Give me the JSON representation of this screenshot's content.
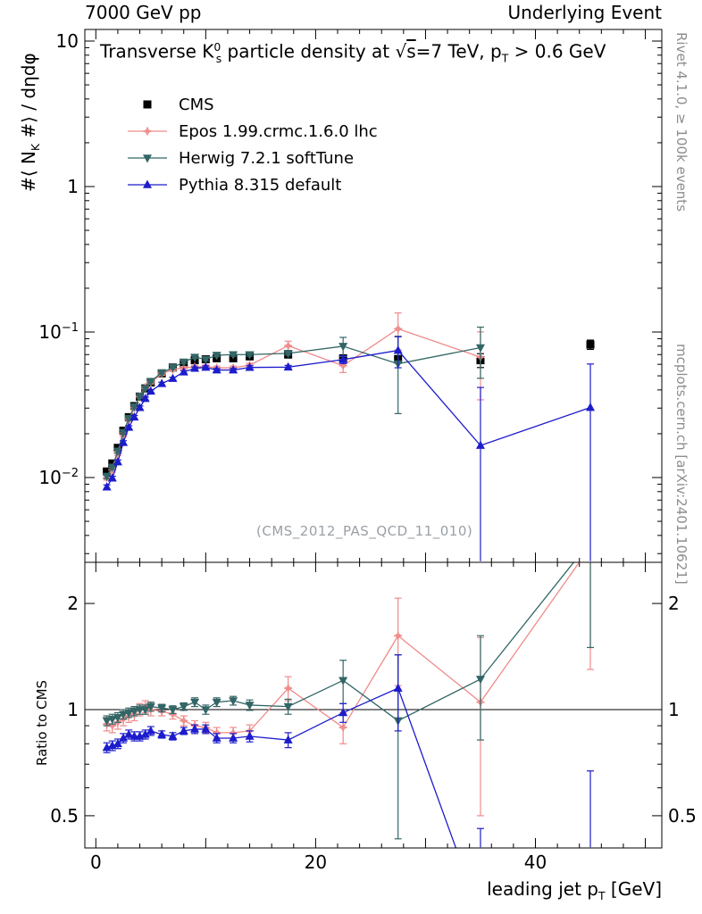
{
  "header": {
    "left": "7000 GeV pp",
    "right": "Underlying Event"
  },
  "titles": {
    "panel_title_html": "Transverse K<sup>0</sup><sub class=\"pull\">s</sub> particle density at √<span class=\"ov\">s</span>=7 TeV, p<sub>T</sub> > 0.6 GeV",
    "ylabel_html": "#⟨ N<sub>K</sub> #⟩ / dηdφ",
    "ratio_ylabel": "Ratio to CMS",
    "xlabel_html": "leading jet p<sub>T</sub> [GeV]",
    "watermark": "(CMS_2012_PAS_QCD_11_010)",
    "side_top": "Rivet 4.1.0, ≥ 100k events",
    "side_bottom": "mcplots.cern.ch [arXiv:2401.10621]"
  },
  "chart_data": {
    "type": "line",
    "title": "Transverse K0s particle density at sqrt(s)=7 TeV, pT > 0.6 GeV",
    "xlabel": "leading jet pT [GeV]",
    "ylabel": "#< N_K #> / dEta dPhi",
    "ratio_label": "Ratio to CMS",
    "x": [
      1,
      1.5,
      2,
      2.5,
      3,
      3.5,
      4,
      4.5,
      5,
      6,
      7,
      8,
      9,
      10,
      11,
      12.5,
      14,
      17.5,
      22.5,
      27.5,
      35,
      45
    ],
    "series": [
      {
        "name": "CMS",
        "color": "#000000",
        "marker": "square",
        "line": false,
        "y": [
          0.011,
          0.0125,
          0.016,
          0.021,
          0.026,
          0.031,
          0.036,
          0.041,
          0.045,
          0.052,
          0.057,
          0.061,
          0.064,
          0.065,
          0.066,
          0.066,
          0.068,
          0.07,
          0.066,
          0.065,
          0.064,
          0.082
        ],
        "yerr": [
          0.0006,
          0.0006,
          0.0008,
          0.001,
          0.0012,
          0.0014,
          0.0015,
          0.0016,
          0.0017,
          0.0018,
          0.002,
          0.002,
          0.002,
          0.002,
          0.002,
          0.002,
          0.0022,
          0.0025,
          0.003,
          0.004,
          0.007,
          0.006
        ]
      },
      {
        "name": "Epos 1.99.crmc.1.6.0 lhc",
        "color": "#f08a8a",
        "marker": "opencross",
        "line": true,
        "y": [
          0.01,
          0.0113,
          0.0147,
          0.0197,
          0.025,
          0.0301,
          0.036,
          0.0418,
          0.045,
          0.0515,
          0.0553,
          0.0567,
          0.0576,
          0.0579,
          0.0568,
          0.0568,
          0.0592,
          0.0805,
          0.0587,
          0.1053,
          0.0672,
          null
        ],
        "yerr": [
          0.0004,
          0.0004,
          0.0005,
          0.0006,
          0.0007,
          0.0008,
          0.0009,
          0.001,
          0.001,
          0.0011,
          0.0012,
          0.0013,
          0.0014,
          0.0015,
          0.0016,
          0.0016,
          0.0018,
          0.006,
          0.006,
          0.03,
          0.033,
          null
        ]
      },
      {
        "name": "Herwig 7.2.1 softTune",
        "color": "#336666",
        "marker": "triangle-down",
        "line": true,
        "y": [
          0.0102,
          0.0118,
          0.0152,
          0.0204,
          0.0255,
          0.0307,
          0.036,
          0.041,
          0.0459,
          0.0525,
          0.057,
          0.0622,
          0.0672,
          0.065,
          0.0693,
          0.07,
          0.07,
          0.0714,
          0.0799,
          0.0605,
          0.0781,
          null
        ],
        "yerr": [
          0.0004,
          0.0004,
          0.0005,
          0.0006,
          0.0007,
          0.0008,
          0.0009,
          0.001,
          0.001,
          0.0011,
          0.0012,
          0.0013,
          0.0015,
          0.0015,
          0.0016,
          0.0017,
          0.0018,
          0.002,
          0.012,
          0.033,
          0.03,
          null
        ]
      },
      {
        "name": "Pythia 8.315 default",
        "color": "#1c1ccc",
        "marker": "triangle-up",
        "line": true,
        "y": [
          0.0086,
          0.0099,
          0.0128,
          0.0174,
          0.0221,
          0.026,
          0.0302,
          0.0349,
          0.0392,
          0.0442,
          0.0479,
          0.0531,
          0.0563,
          0.0572,
          0.0548,
          0.0548,
          0.0571,
          0.0574,
          0.0647,
          0.0748,
          0.0166,
          0.0303
        ],
        "yerr": [
          0.0003,
          0.0003,
          0.0004,
          0.0005,
          0.0006,
          0.0007,
          0.0008,
          0.0008,
          0.0009,
          0.001,
          0.001,
          0.0011,
          0.0012,
          0.0013,
          0.0013,
          0.0014,
          0.0015,
          0.0016,
          0.004,
          0.018,
          0.025,
          0.03
        ]
      }
    ],
    "ratio_series": [
      {
        "name": "Epos 1.99.crmc.1.6.0 lhc",
        "color": "#f08a8a",
        "marker": "opencross",
        "line": true,
        "y": [
          0.91,
          0.9,
          0.92,
          0.94,
          0.96,
          0.97,
          1.0,
          1.02,
          1.0,
          0.99,
          0.97,
          0.93,
          0.9,
          0.89,
          0.86,
          0.86,
          0.87,
          1.15,
          0.89,
          1.62,
          1.05,
          2.9
        ],
        "yerr": [
          0.04,
          0.04,
          0.04,
          0.04,
          0.04,
          0.04,
          0.04,
          0.04,
          0.04,
          0.03,
          0.03,
          0.03,
          0.03,
          0.03,
          0.03,
          0.03,
          0.035,
          0.09,
          0.09,
          0.45,
          0.55,
          1.6
        ]
      },
      {
        "name": "Herwig 7.2.1 softTune",
        "color": "#336666",
        "marker": "triangle-down",
        "line": true,
        "y": [
          0.93,
          0.94,
          0.95,
          0.97,
          0.98,
          0.99,
          1.0,
          1.0,
          1.02,
          1.01,
          1.0,
          1.02,
          1.05,
          1.0,
          1.05,
          1.06,
          1.03,
          1.02,
          1.21,
          0.93,
          1.22,
          3.0
        ],
        "yerr": [
          0.03,
          0.03,
          0.03,
          0.03,
          0.03,
          0.03,
          0.03,
          0.03,
          0.03,
          0.025,
          0.025,
          0.025,
          0.03,
          0.03,
          0.03,
          0.03,
          0.035,
          0.05,
          0.17,
          0.5,
          0.4,
          1.5
        ]
      },
      {
        "name": "Pythia 8.315 default",
        "color": "#1c1ccc",
        "marker": "triangle-up",
        "line": true,
        "y": [
          0.78,
          0.79,
          0.8,
          0.83,
          0.85,
          0.84,
          0.84,
          0.85,
          0.87,
          0.85,
          0.84,
          0.87,
          0.88,
          0.88,
          0.83,
          0.83,
          0.84,
          0.82,
          0.98,
          1.15,
          0.26,
          0.37
        ],
        "yerr": [
          0.025,
          0.025,
          0.025,
          0.025,
          0.025,
          0.025,
          0.025,
          0.025,
          0.025,
          0.02,
          0.02,
          0.02,
          0.025,
          0.025,
          0.025,
          0.025,
          0.03,
          0.04,
          0.06,
          0.28,
          0.2,
          0.3
        ]
      }
    ],
    "axes": {
      "x": {
        "min": -1,
        "max": 51.5,
        "ticks": [
          0,
          20,
          40
        ],
        "tick_labels": [
          "0",
          "20",
          "40"
        ],
        "minor_step": 2,
        "major_step": 10
      },
      "y_main": {
        "scale": "log",
        "min": 0.0026,
        "max": 12,
        "ticks": [
          10,
          1,
          0.1,
          0.01
        ],
        "tick_labels": [
          "10",
          "1",
          "10^−1",
          "10^−2"
        ]
      },
      "y_ratio": {
        "scale": "log",
        "min": 0.405,
        "max": 2.62,
        "ticks": [
          2,
          1,
          0.5
        ],
        "tick_labels": [
          "2",
          "1",
          "0.5"
        ],
        "ref_line": 1,
        "minor_ticks": [
          0.6,
          0.7,
          0.8,
          0.9
        ]
      }
    },
    "legend_position": "top-left"
  }
}
